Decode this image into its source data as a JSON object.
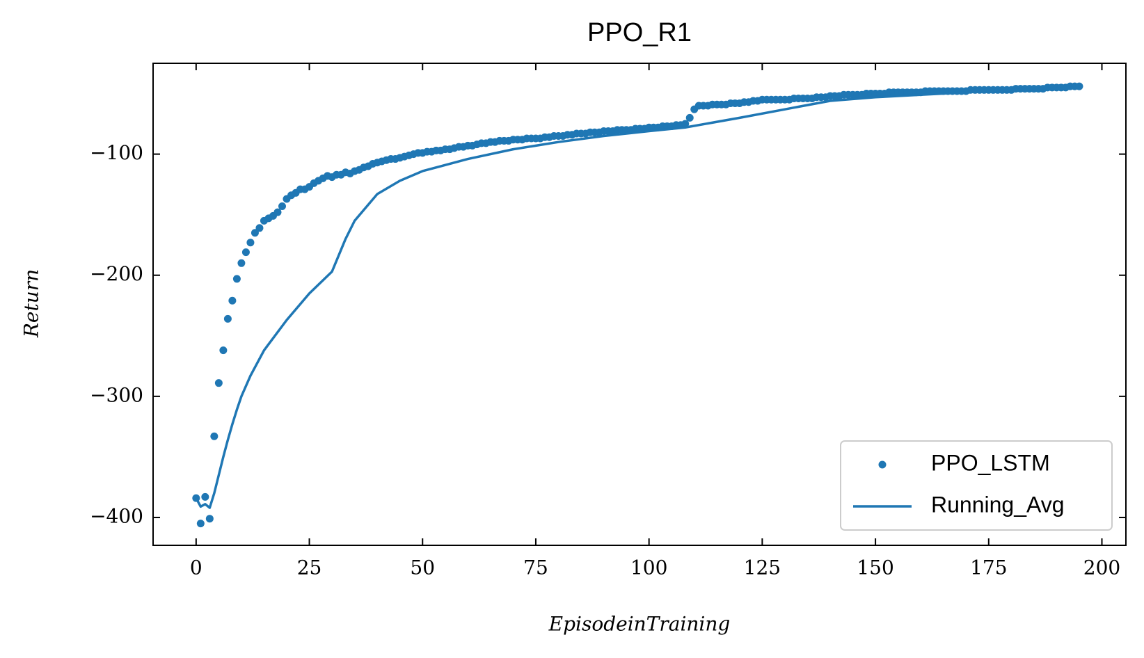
{
  "chart_data": {
    "type": "scatter",
    "title": "PPO_R1",
    "x_label": "EpisodeinTraining",
    "y_label": "Return",
    "x": [
      0,
      1,
      2,
      3,
      4,
      5,
      6,
      7,
      8,
      9,
      10,
      11,
      12,
      13,
      14,
      15,
      16,
      17,
      18,
      19,
      20,
      21,
      22,
      23,
      24,
      25,
      26,
      27,
      28,
      29,
      30,
      31,
      32,
      33,
      34,
      35,
      36,
      37,
      38,
      39,
      40,
      41,
      42,
      43,
      44,
      45,
      46,
      47,
      48,
      49,
      50,
      51,
      52,
      53,
      54,
      55,
      56,
      57,
      58,
      59,
      60,
      61,
      62,
      63,
      64,
      65,
      66,
      67,
      68,
      69,
      70,
      71,
      72,
      73,
      74,
      75,
      76,
      77,
      78,
      79,
      80,
      81,
      82,
      83,
      84,
      85,
      86,
      87,
      88,
      89,
      90,
      91,
      92,
      93,
      94,
      95,
      96,
      97,
      98,
      99,
      100,
      101,
      102,
      103,
      104,
      105,
      106,
      107,
      108,
      109,
      110,
      111,
      112,
      113,
      114,
      115,
      116,
      117,
      118,
      119,
      120,
      121,
      122,
      123,
      124,
      125,
      126,
      127,
      128,
      129,
      130,
      131,
      132,
      133,
      134,
      135,
      136,
      137,
      138,
      139,
      140,
      141,
      142,
      143,
      144,
      145,
      146,
      147,
      148,
      149,
      150,
      151,
      152,
      153,
      154,
      155,
      156,
      157,
      158,
      159,
      160,
      161,
      162,
      163,
      164,
      165,
      166,
      167,
      168,
      169,
      170,
      171,
      172,
      173,
      174,
      175,
      176,
      177,
      178,
      179,
      180,
      181,
      182,
      183,
      184,
      185,
      186,
      187,
      188,
      189,
      190,
      191,
      192,
      193,
      194,
      195
    ],
    "series": [
      {
        "name": "PPO_LSTM",
        "type": "scatter",
        "color": "#1f77b4",
        "values": [
          -384,
          -405,
          -383,
          -401,
          -333,
          -289,
          -262,
          -236,
          -221,
          -203,
          -190,
          -181,
          -173,
          -165,
          -161,
          -155,
          -153,
          -151,
          -148,
          -143,
          -137,
          -134,
          -132,
          -129,
          -129,
          -127,
          -124,
          -122,
          -120,
          -118,
          -119,
          -117,
          -117,
          -115,
          -116,
          -114,
          -113,
          -111,
          -110,
          -108,
          -107,
          -106,
          -105,
          -104,
          -104,
          -103,
          -102,
          -101,
          -100,
          -99,
          -99,
          -98,
          -98,
          -97,
          -97,
          -96,
          -96,
          -95,
          -94,
          -94,
          -93,
          -93,
          -92,
          -91,
          -91,
          -90,
          -90,
          -89,
          -89,
          -89,
          -88,
          -88,
          -88,
          -87,
          -87,
          -87,
          -87,
          -86,
          -86,
          -85,
          -85,
          -85,
          -84,
          -84,
          -83,
          -83,
          -83,
          -82,
          -82,
          -82,
          -81,
          -81,
          -81,
          -80,
          -80,
          -80,
          -80,
          -79,
          -79,
          -79,
          -78,
          -78,
          -78,
          -77,
          -77,
          -77,
          -76,
          -76,
          -75,
          -70,
          -63,
          -60,
          -60,
          -60,
          -59,
          -59,
          -59,
          -59,
          -58,
          -58,
          -58,
          -57,
          -57,
          -56,
          -56,
          -55,
          -55,
          -55,
          -55,
          -55,
          -55,
          -55,
          -54,
          -54,
          -54,
          -54,
          -54,
          -53,
          -53,
          -53,
          -52,
          -52,
          -52,
          -51,
          -51,
          -51,
          -51,
          -51,
          -50,
          -50,
          -50,
          -50,
          -50,
          -49,
          -49,
          -49,
          -49,
          -49,
          -49,
          -49,
          -49,
          -48,
          -48,
          -48,
          -48,
          -48,
          -48,
          -48,
          -48,
          -48,
          -48,
          -47,
          -47,
          -47,
          -47,
          -47,
          -47,
          -47,
          -47,
          -47,
          -47,
          -46,
          -46,
          -46,
          -46,
          -46,
          -46,
          -46,
          -45,
          -45,
          -45,
          -45,
          -45,
          -44,
          -44,
          -44
        ]
      },
      {
        "name": "Running_Avg",
        "type": "line",
        "color": "#1f77b4",
        "x": [
          0,
          1,
          2,
          3,
          4,
          5,
          6,
          7,
          8,
          9,
          10,
          12,
          15,
          20,
          25,
          30,
          33,
          35,
          40,
          45,
          50,
          60,
          70,
          80,
          90,
          100,
          108,
          120,
          130,
          140,
          150,
          160,
          175,
          195
        ],
        "values": [
          -384,
          -391,
          -389,
          -392,
          -380,
          -365,
          -350,
          -336,
          -323,
          -311,
          -300,
          -283,
          -262,
          -237,
          -215,
          -197,
          -170,
          -155,
          -133,
          -122,
          -114,
          -104,
          -96,
          -90,
          -85,
          -81,
          -78,
          -70,
          -63,
          -56,
          -53,
          -51,
          -48,
          -45
        ]
      }
    ],
    "xlim": [
      -9.5,
      205.3
    ],
    "ylim": [
      -423,
      -25
    ],
    "xticks": [
      0,
      25,
      50,
      75,
      100,
      125,
      150,
      175,
      200
    ],
    "yticks": [
      {
        "value": -100,
        "label": "−100"
      },
      {
        "value": -200,
        "label": "−200"
      },
      {
        "value": -300,
        "label": "−300"
      },
      {
        "value": -400,
        "label": "−400"
      }
    ],
    "legend": "lower right"
  }
}
